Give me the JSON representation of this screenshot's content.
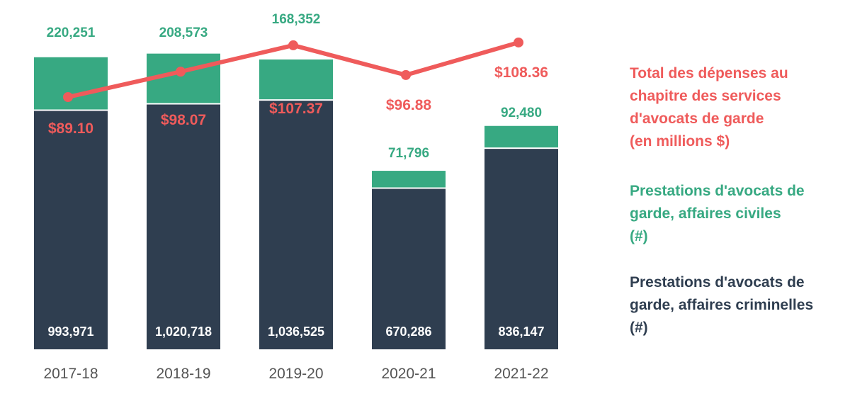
{
  "colors": {
    "criminal": "#2f3e50",
    "civil": "#37a982",
    "spending": "#ef5b5b",
    "axis_text": "#555555",
    "label_light": "#ffffff"
  },
  "chart_data": {
    "type": "bar",
    "stacked": true,
    "categories": [
      "2017-18",
      "2018-19",
      "2019-20",
      "2020-21",
      "2021-22"
    ],
    "series": [
      {
        "name": "Prestations d'avocats de garde, affaires criminelles (#)",
        "kind": "bar",
        "values": [
          993971,
          1020718,
          1036525,
          670286,
          836147
        ],
        "labels": [
          "993,971",
          "1,020,718",
          "1,036,525",
          "670,286",
          "836,147"
        ]
      },
      {
        "name": "Prestations d'avocats de garde, affaires civiles (#)",
        "kind": "bar",
        "values": [
          220251,
          208573,
          168352,
          71796,
          92480
        ],
        "labels": [
          "220,251",
          "208,573",
          "168,352",
          "71,796",
          "92,480"
        ]
      },
      {
        "name": "Total des dépenses au chapitre des services d'avocats de garde (en millions $)",
        "kind": "line",
        "values": [
          89.1,
          98.07,
          107.37,
          96.88,
          108.36
        ],
        "labels": [
          "$89.10",
          "$98.07",
          "$107.37",
          "$96.88",
          "$108.36"
        ]
      }
    ],
    "legend": {
      "position": "right",
      "spending": [
        "Total des dépenses au",
        "chapitre des services",
        "d'avocats de garde",
        "(en millions $)"
      ],
      "civil": [
        "Prestations d'avocats de",
        "garde, affaires civiles",
        "(#)"
      ],
      "criminal": [
        "Prestations d'avocats de",
        "garde,  affaires criminelles",
        "(#)"
      ]
    },
    "grid": false
  }
}
